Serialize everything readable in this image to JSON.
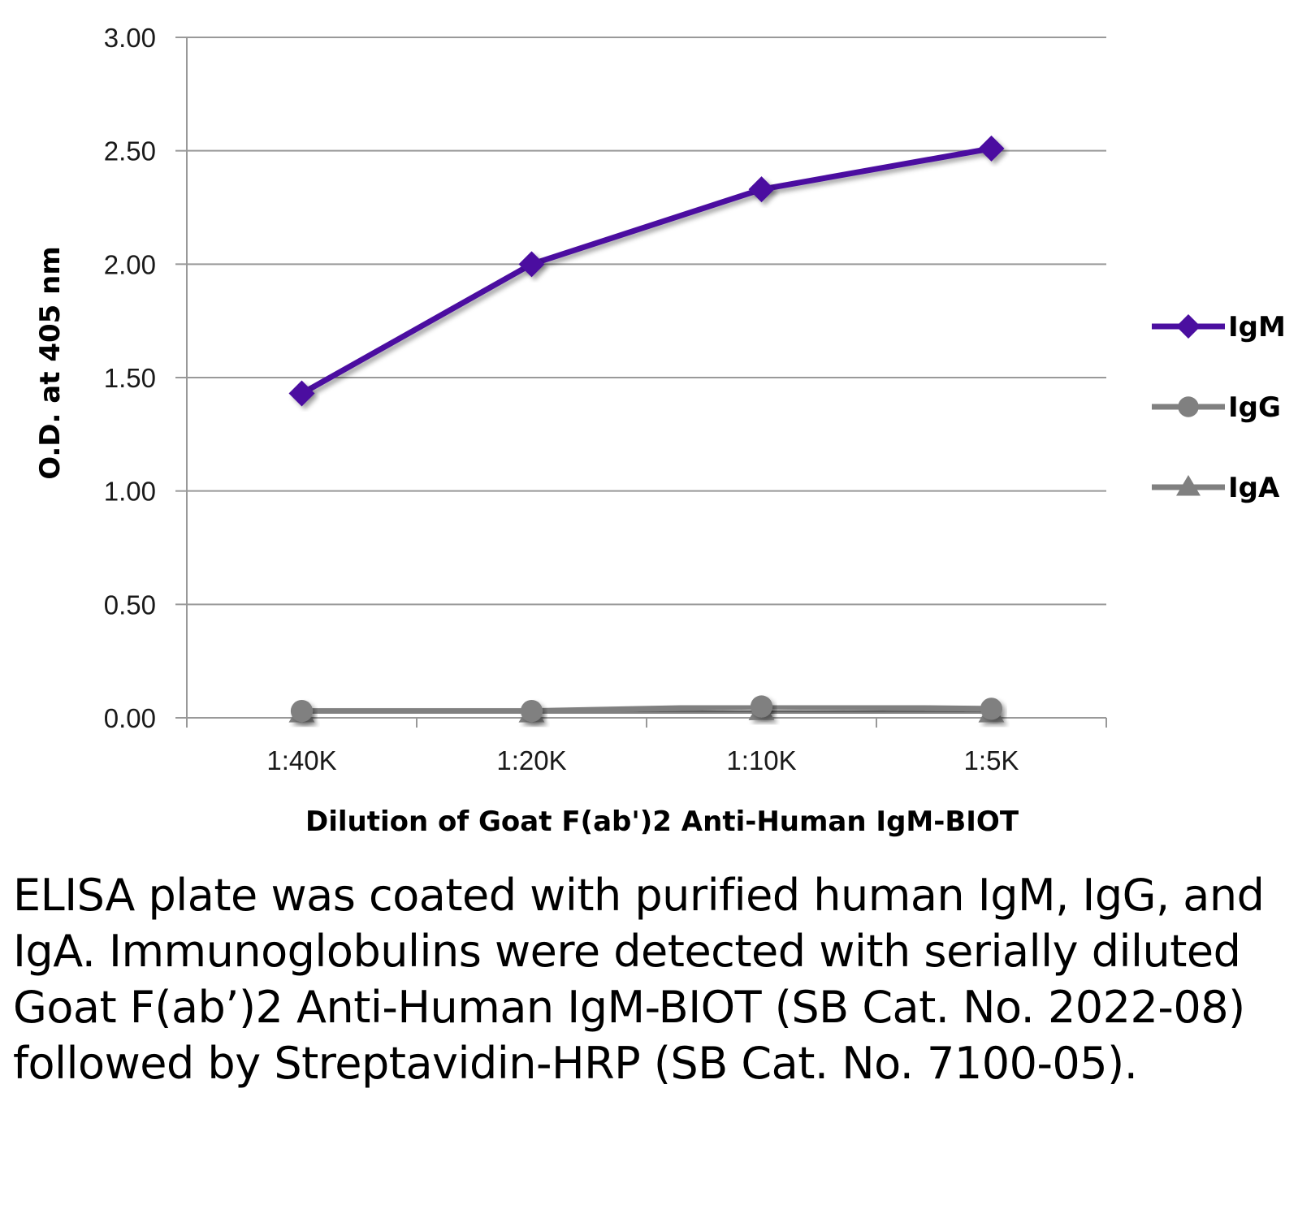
{
  "chart_data": {
    "type": "line",
    "xlabel": "Dilution of Goat F(ab')2 Anti-Human IgM-BIOT",
    "ylabel": "O.D. at 405 nm",
    "categories": [
      "1:40K",
      "1:20K",
      "1:10K",
      "1:5K"
    ],
    "ylim": [
      0,
      3
    ],
    "yticks": [
      "0.00",
      "0.50",
      "1.00",
      "1.50",
      "2.00",
      "2.50",
      "3.00"
    ],
    "grid": true,
    "legend": "right",
    "series": [
      {
        "name": "IgM",
        "values": [
          1.43,
          2.0,
          2.33,
          2.51
        ],
        "color": "#4b0fa0",
        "marker": "diamond"
      },
      {
        "name": "IgG",
        "values": [
          0.03,
          0.03,
          0.05,
          0.04
        ],
        "color": "#808080",
        "marker": "circle"
      },
      {
        "name": "IgA",
        "values": [
          0.02,
          0.02,
          0.03,
          0.02
        ],
        "color": "#808080",
        "marker": "triangle"
      }
    ]
  },
  "caption": "ELISA plate was coated with purified human IgM, IgG, and IgA.  Immunoglobulins were detected with serially diluted Goat F(ab’)2 Anti-Human IgM-BIOT (SB Cat. No. 2022-08) followed by Streptavidin-HRP (SB Cat. No. 7100-05)."
}
